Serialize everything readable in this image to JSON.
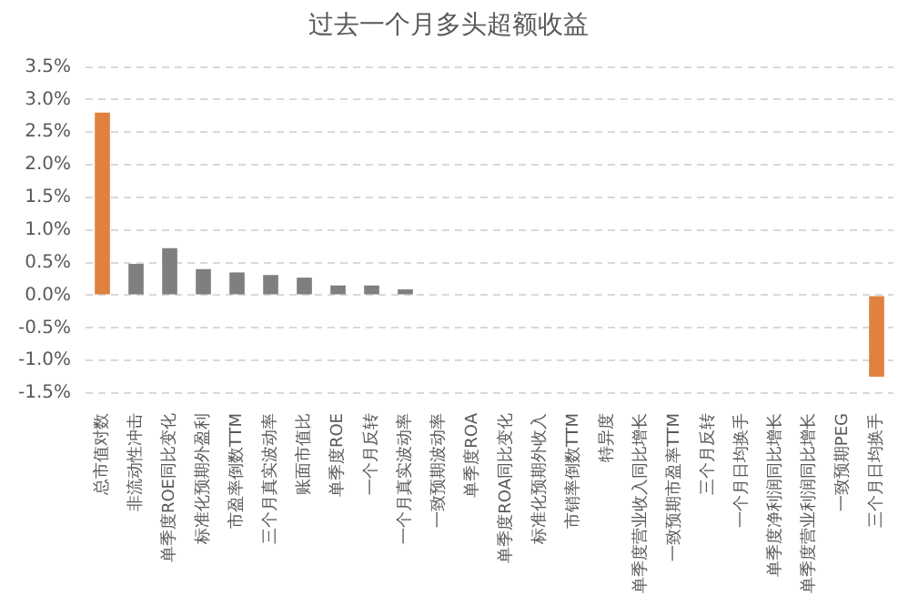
{
  "chart_data": {
    "type": "bar",
    "title": "过去一个月多头超额收益",
    "categories": [
      "总市值对数",
      "非流动性冲击",
      "单季度ROE同比变化",
      "标准化预期外盈利",
      "市盈率倒数TTM",
      "三个月真实波动率",
      "账面市值比",
      "单季度ROE",
      "一个月反转",
      "一个月真实波动率",
      "一致预期波动率",
      "单季度ROA",
      "单季度ROA同比变化",
      "标准化预期外收入",
      "市销率倒数TTM",
      "特异度",
      "单季度营业收入同比增长",
      "一致预期市盈率TTM",
      "三个月反转",
      "一个月日均换手",
      "单季度净利润同比增长",
      "单季度营业利润同比增长",
      "一致预期PEG",
      "三个月日均换手"
    ],
    "values": [
      2.8,
      0.48,
      0.72,
      0.4,
      0.35,
      0.31,
      0.27,
      0.15,
      0.15,
      0.09,
      null,
      null,
      null,
      null,
      null,
      null,
      null,
      null,
      null,
      null,
      null,
      null,
      null,
      -1.25
    ],
    "colors": [
      "#e0813f",
      "#7f7f7f",
      "#7f7f7f",
      "#7f7f7f",
      "#7f7f7f",
      "#7f7f7f",
      "#7f7f7f",
      "#7f7f7f",
      "#7f7f7f",
      "#7f7f7f",
      "#7f7f7f",
      "#7f7f7f",
      "#7f7f7f",
      "#7f7f7f",
      "#7f7f7f",
      "#7f7f7f",
      "#7f7f7f",
      "#7f7f7f",
      "#7f7f7f",
      "#7f7f7f",
      "#7f7f7f",
      "#7f7f7f",
      "#7f7f7f",
      "#e0813f"
    ],
    "ylim": [
      -1.5,
      3.5
    ],
    "yticks": [
      {
        "value": -1.5,
        "label": "-1.5%"
      },
      {
        "value": -1.0,
        "label": "-1.0%"
      },
      {
        "value": -0.5,
        "label": "-0.5%"
      },
      {
        "value": 0,
        "label": "0.0%"
      },
      {
        "value": 0.5,
        "label": "0.5%"
      },
      {
        "value": 1.0,
        "label": "1.0%"
      },
      {
        "value": 1.5,
        "label": "1.5%"
      },
      {
        "value": 2.0,
        "label": "2.0%"
      },
      {
        "value": 2.5,
        "label": "2.5%"
      },
      {
        "value": 3.0,
        "label": "3.0%"
      },
      {
        "value": 3.5,
        "label": "3.5%"
      }
    ],
    "grid": "y",
    "legend": false
  }
}
